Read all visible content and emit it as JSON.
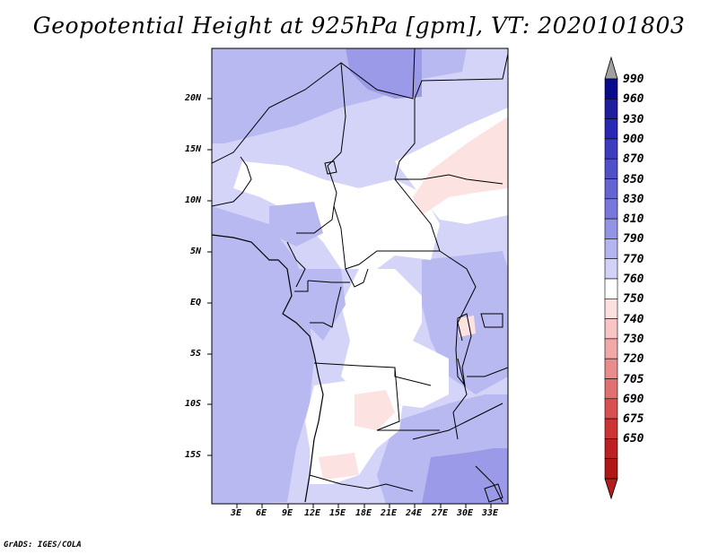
{
  "title": "Geopotential Height at 925hPa [gpm], VT: 2020101803",
  "credit": "GrADS: IGES/COLA",
  "map": {
    "lon_ticks": [
      "3E",
      "6E",
      "9E",
      "12E",
      "15E",
      "18E",
      "21E",
      "24E",
      "27E",
      "30E",
      "33E"
    ],
    "lat_ticks": [
      "20N",
      "15N",
      "10N",
      "5N",
      "EQ",
      "5S",
      "10S",
      "15S"
    ]
  },
  "colorbar": {
    "levels": [
      "990",
      "960",
      "930",
      "900",
      "870",
      "850",
      "830",
      "810",
      "790",
      "770",
      "760",
      "750",
      "740",
      "730",
      "720",
      "705",
      "690",
      "675",
      "650"
    ],
    "colors": {
      "top_arrow": "#a0a0a0",
      "bottom_arrow": "#b21e1e",
      "swatches": [
        "#0a0a8c",
        "#1e1ea0",
        "#2828b4",
        "#3c3cc0",
        "#5050c8",
        "#6464d2",
        "#7878dc",
        "#9494e6",
        "#b4b4f0",
        "#d2d2f8",
        "#ffffff",
        "#fce0e0",
        "#f8c4c4",
        "#f0a8a8",
        "#e88c8c",
        "#e07070",
        "#d85050",
        "#cc3434",
        "#bc2020",
        "#b01818"
      ]
    }
  },
  "field_colors": {
    "c790": "#b9b9f1",
    "c770": "#d4d4f8",
    "c760": "#ffffff",
    "c750": "#fde2e2",
    "c810": "#9a9ae8"
  }
}
